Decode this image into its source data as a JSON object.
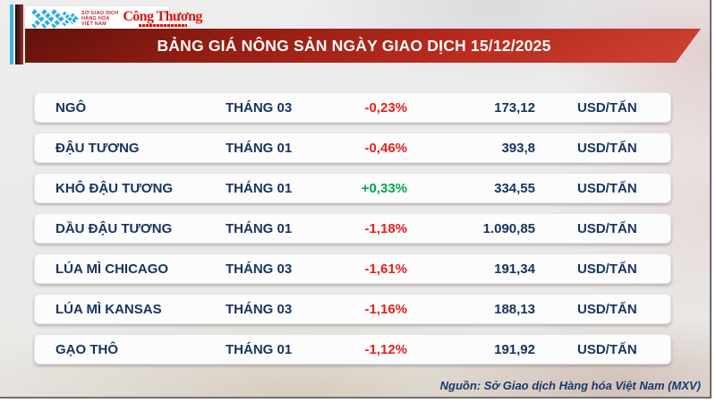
{
  "header": {
    "title": "BẢNG GIÁ NÔNG SẢN NGÀY GIAO DỊCH 15/12/2025",
    "logo": {
      "mxv_line1": "SỞ GIAO DỊCH",
      "mxv_line2": "HÀNG HÓA",
      "mxv_line3": "VIỆT NAM",
      "congthuong": "Công Thương"
    }
  },
  "table": {
    "rows": [
      {
        "name": "NGÔ",
        "month": "THÁNG 03",
        "change": "-0,23%",
        "price": "173,12",
        "unit": "USD/TẤN"
      },
      {
        "name": "ĐẬU TƯƠNG",
        "month": "THÁNG 01",
        "change": "-0,46%",
        "price": "393,8",
        "unit": "USD/TẤN"
      },
      {
        "name": "KHÔ ĐẬU TƯƠNG",
        "month": "THÁNG 01",
        "change": "+0,33%",
        "price": "334,55",
        "unit": "USD/TẤN"
      },
      {
        "name": "DẦU ĐẬU TƯƠNG",
        "month": "THÁNG 01",
        "change": "-1,18%",
        "price": "1.090,85",
        "unit": "USD/TẤN"
      },
      {
        "name": "LÚA MÌ CHICAGO",
        "month": "THÁNG 03",
        "change": "-1,61%",
        "price": "191,34",
        "unit": "USD/TẤN"
      },
      {
        "name": "LÚA MÌ KANSAS",
        "month": "THÁNG 03",
        "change": "-1,16%",
        "price": "188,13",
        "unit": "USD/TẤN"
      },
      {
        "name": "GẠO THÔ",
        "month": "THÁNG 01",
        "change": "-1,12%",
        "price": "191,92",
        "unit": "USD/TẤN"
      }
    ]
  },
  "footer": {
    "source": "Nguồn: Sở Giao dịch Hàng hóa Việt Nam (MXV)"
  },
  "colors": {
    "up": "#00a651",
    "down": "#e2231a",
    "navy": "#17335f",
    "banner_red": "#b72a1d",
    "mxv_blue": "#29abe2"
  },
  "chart_data": {
    "type": "table",
    "title": "BẢNG GIÁ NÔNG SẢN NGÀY GIAO DỊCH 15/12/2025",
    "rows": [
      [
        "NGÔ",
        "THÁNG 03",
        "-0,23%",
        "173,12",
        "USD/TẤN"
      ],
      [
        "ĐẬU TƯƠNG",
        "THÁNG 01",
        "-0,46%",
        "393,8",
        "USD/TẤN"
      ],
      [
        "KHÔ ĐẬU TƯƠNG",
        "THÁNG 01",
        "+0,33%",
        "334,55",
        "USD/TẤN"
      ],
      [
        "DẦU ĐẬU TƯƠNG",
        "THÁNG 01",
        "-1,18%",
        "1.090,85",
        "USD/TẤN"
      ],
      [
        "LÚA MÌ CHICAGO",
        "THÁNG 03",
        "-1,61%",
        "191,34",
        "USD/TẤN"
      ],
      [
        "LÚA MÌ KANSAS",
        "THÁNG 03",
        "-1,16%",
        "188,13",
        "USD/TẤN"
      ],
      [
        "GẠO THÔ",
        "THÁNG 01",
        "-1,12%",
        "191,92",
        "USD/TẤN"
      ]
    ],
    "source": "Nguồn: Sở Giao dịch Hàng hóa Việt Nam (MXV)"
  }
}
